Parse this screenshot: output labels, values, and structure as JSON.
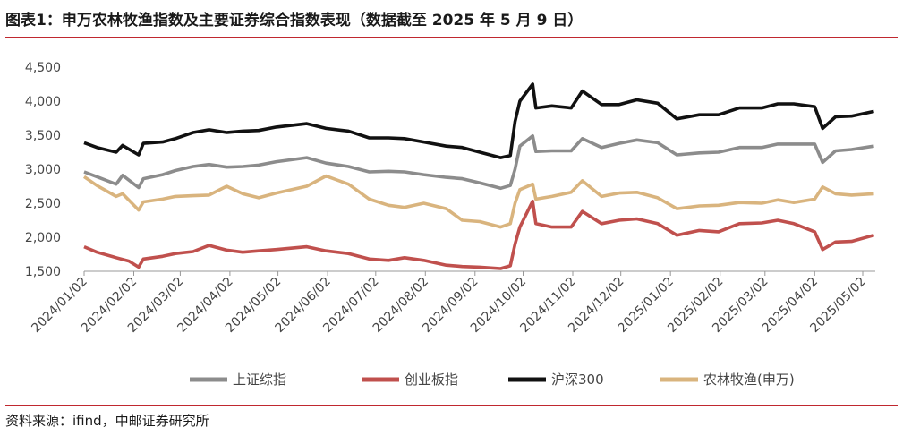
{
  "figure": {
    "title": "图表1：申万农林牧渔指数及主要证券综合指数表现（数据截至 2025 年 5 月 9 日）",
    "source": "资料来源：ifind，中邮证券研究所"
  },
  "chart_data": {
    "type": "line",
    "x_ticks": [
      "2024/01/02",
      "2024/02/02",
      "2024/03/02",
      "2024/04/02",
      "2024/05/02",
      "2024/06/02",
      "2024/07/02",
      "2024/08/02",
      "2024/09/02",
      "2024/10/02",
      "2024/11/02",
      "2024/12/02",
      "2025/01/02",
      "2025/02/02",
      "2025/03/02",
      "2025/04/02",
      "2025/05/02"
    ],
    "x_range": [
      "2024/01/02",
      "2025/05/09"
    ],
    "y_ticks": [
      "1,500",
      "2,000",
      "2,500",
      "3,000",
      "3,500",
      "4,000",
      "4,500"
    ],
    "ylim": [
      1500,
      4500
    ],
    "grid": false,
    "legend_position": "bottom",
    "series": [
      {
        "name": "上证综指",
        "color": "#8c8c8c",
        "points": [
          [
            "2024/01/02",
            2960
          ],
          [
            "2024/01/10",
            2890
          ],
          [
            "2024/01/22",
            2780
          ],
          [
            "2024/01/26",
            2910
          ],
          [
            "2024/02/05",
            2730
          ],
          [
            "2024/02/08",
            2860
          ],
          [
            "2024/02/20",
            2920
          ],
          [
            "2024/02/28",
            2980
          ],
          [
            "2024/03/10",
            3040
          ],
          [
            "2024/03/20",
            3070
          ],
          [
            "2024/03/31",
            3030
          ],
          [
            "2024/04/10",
            3040
          ],
          [
            "2024/04/20",
            3060
          ],
          [
            "2024/05/01",
            3110
          ],
          [
            "2024/05/20",
            3170
          ],
          [
            "2024/06/01",
            3090
          ],
          [
            "2024/06/15",
            3040
          ],
          [
            "2024/06/28",
            2960
          ],
          [
            "2024/07/10",
            2970
          ],
          [
            "2024/07/20",
            2960
          ],
          [
            "2024/08/01",
            2920
          ],
          [
            "2024/08/15",
            2880
          ],
          [
            "2024/08/25",
            2860
          ],
          [
            "2024/09/05",
            2800
          ],
          [
            "2024/09/18",
            2720
          ],
          [
            "2024/09/24",
            2760
          ],
          [
            "2024/09/27",
            3000
          ],
          [
            "2024/09/30",
            3340
          ],
          [
            "2024/10/08",
            3490
          ],
          [
            "2024/10/10",
            3260
          ],
          [
            "2024/10/20",
            3270
          ],
          [
            "2024/11/01",
            3270
          ],
          [
            "2024/11/08",
            3450
          ],
          [
            "2024/11/20",
            3320
          ],
          [
            "2024/12/01",
            3380
          ],
          [
            "2024/12/12",
            3430
          ],
          [
            "2024/12/25",
            3390
          ],
          [
            "2025/01/06",
            3210
          ],
          [
            "2025/01/20",
            3240
          ],
          [
            "2025/02/01",
            3250
          ],
          [
            "2025/02/14",
            3320
          ],
          [
            "2025/02/28",
            3320
          ],
          [
            "2025/03/10",
            3370
          ],
          [
            "2025/03/20",
            3370
          ],
          [
            "2025/04/02",
            3370
          ],
          [
            "2025/04/07",
            3100
          ],
          [
            "2025/04/15",
            3270
          ],
          [
            "2025/04/25",
            3290
          ],
          [
            "2025/05/09",
            3340
          ]
        ]
      },
      {
        "name": "创业板指",
        "color": "#c0504d",
        "points": [
          [
            "2024/01/02",
            1860
          ],
          [
            "2024/01/10",
            1780
          ],
          [
            "2024/01/22",
            1700
          ],
          [
            "2024/01/30",
            1650
          ],
          [
            "2024/02/05",
            1560
          ],
          [
            "2024/02/08",
            1680
          ],
          [
            "2024/02/20",
            1720
          ],
          [
            "2024/02/28",
            1760
          ],
          [
            "2024/03/10",
            1790
          ],
          [
            "2024/03/20",
            1880
          ],
          [
            "2024/03/31",
            1810
          ],
          [
            "2024/04/10",
            1780
          ],
          [
            "2024/04/20",
            1800
          ],
          [
            "2024/05/01",
            1820
          ],
          [
            "2024/05/20",
            1860
          ],
          [
            "2024/06/01",
            1800
          ],
          [
            "2024/06/15",
            1760
          ],
          [
            "2024/06/28",
            1680
          ],
          [
            "2024/07/10",
            1660
          ],
          [
            "2024/07/20",
            1700
          ],
          [
            "2024/08/01",
            1660
          ],
          [
            "2024/08/15",
            1590
          ],
          [
            "2024/08/25",
            1570
          ],
          [
            "2024/09/05",
            1560
          ],
          [
            "2024/09/18",
            1540
          ],
          [
            "2024/09/24",
            1580
          ],
          [
            "2024/09/27",
            1900
          ],
          [
            "2024/09/30",
            2150
          ],
          [
            "2024/10/08",
            2530
          ],
          [
            "2024/10/10",
            2200
          ],
          [
            "2024/10/20",
            2150
          ],
          [
            "2024/11/01",
            2150
          ],
          [
            "2024/11/08",
            2380
          ],
          [
            "2024/11/20",
            2200
          ],
          [
            "2024/12/01",
            2250
          ],
          [
            "2024/12/12",
            2270
          ],
          [
            "2024/12/25",
            2200
          ],
          [
            "2025/01/06",
            2030
          ],
          [
            "2025/01/20",
            2100
          ],
          [
            "2025/02/01",
            2080
          ],
          [
            "2025/02/14",
            2200
          ],
          [
            "2025/02/28",
            2210
          ],
          [
            "2025/03/10",
            2250
          ],
          [
            "2025/03/20",
            2200
          ],
          [
            "2025/04/02",
            2080
          ],
          [
            "2025/04/07",
            1820
          ],
          [
            "2025/04/15",
            1930
          ],
          [
            "2025/04/25",
            1940
          ],
          [
            "2025/05/09",
            2030
          ]
        ]
      },
      {
        "name": "沪深300",
        "color": "#111111",
        "points": [
          [
            "2024/01/02",
            3390
          ],
          [
            "2024/01/10",
            3320
          ],
          [
            "2024/01/22",
            3250
          ],
          [
            "2024/01/26",
            3350
          ],
          [
            "2024/02/05",
            3210
          ],
          [
            "2024/02/08",
            3380
          ],
          [
            "2024/02/20",
            3400
          ],
          [
            "2024/02/28",
            3450
          ],
          [
            "2024/03/10",
            3540
          ],
          [
            "2024/03/20",
            3580
          ],
          [
            "2024/03/31",
            3540
          ],
          [
            "2024/04/10",
            3560
          ],
          [
            "2024/04/20",
            3570
          ],
          [
            "2024/05/01",
            3620
          ],
          [
            "2024/05/20",
            3670
          ],
          [
            "2024/06/01",
            3600
          ],
          [
            "2024/06/15",
            3560
          ],
          [
            "2024/06/28",
            3460
          ],
          [
            "2024/07/10",
            3460
          ],
          [
            "2024/07/20",
            3450
          ],
          [
            "2024/08/01",
            3400
          ],
          [
            "2024/08/15",
            3340
          ],
          [
            "2024/08/25",
            3320
          ],
          [
            "2024/09/05",
            3250
          ],
          [
            "2024/09/18",
            3170
          ],
          [
            "2024/09/24",
            3200
          ],
          [
            "2024/09/27",
            3700
          ],
          [
            "2024/09/30",
            4000
          ],
          [
            "2024/10/08",
            4250
          ],
          [
            "2024/10/10",
            3900
          ],
          [
            "2024/10/20",
            3930
          ],
          [
            "2024/11/01",
            3900
          ],
          [
            "2024/11/08",
            4150
          ],
          [
            "2024/11/20",
            3950
          ],
          [
            "2024/12/01",
            3950
          ],
          [
            "2024/12/12",
            4020
          ],
          [
            "2024/12/25",
            3970
          ],
          [
            "2025/01/06",
            3740
          ],
          [
            "2025/01/20",
            3800
          ],
          [
            "2025/02/01",
            3800
          ],
          [
            "2025/02/14",
            3900
          ],
          [
            "2025/02/28",
            3900
          ],
          [
            "2025/03/10",
            3960
          ],
          [
            "2025/03/20",
            3960
          ],
          [
            "2025/04/02",
            3920
          ],
          [
            "2025/04/07",
            3600
          ],
          [
            "2025/04/15",
            3770
          ],
          [
            "2025/04/25",
            3780
          ],
          [
            "2025/05/09",
            3850
          ]
        ]
      },
      {
        "name": "农林牧渔(申万)",
        "color": "#d9b47e",
        "points": [
          [
            "2024/01/02",
            2890
          ],
          [
            "2024/01/10",
            2760
          ],
          [
            "2024/01/22",
            2600
          ],
          [
            "2024/01/26",
            2640
          ],
          [
            "2024/02/05",
            2400
          ],
          [
            "2024/02/08",
            2520
          ],
          [
            "2024/02/20",
            2560
          ],
          [
            "2024/02/28",
            2600
          ],
          [
            "2024/03/10",
            2610
          ],
          [
            "2024/03/20",
            2620
          ],
          [
            "2024/03/31",
            2750
          ],
          [
            "2024/04/10",
            2640
          ],
          [
            "2024/04/20",
            2580
          ],
          [
            "2024/05/01",
            2650
          ],
          [
            "2024/05/20",
            2750
          ],
          [
            "2024/06/01",
            2900
          ],
          [
            "2024/06/15",
            2780
          ],
          [
            "2024/06/28",
            2560
          ],
          [
            "2024/07/10",
            2470
          ],
          [
            "2024/07/20",
            2440
          ],
          [
            "2024/08/01",
            2500
          ],
          [
            "2024/08/15",
            2420
          ],
          [
            "2024/08/25",
            2250
          ],
          [
            "2024/09/05",
            2230
          ],
          [
            "2024/09/18",
            2150
          ],
          [
            "2024/09/24",
            2200
          ],
          [
            "2024/09/27",
            2500
          ],
          [
            "2024/09/30",
            2700
          ],
          [
            "2024/10/08",
            2780
          ],
          [
            "2024/10/10",
            2560
          ],
          [
            "2024/10/20",
            2600
          ],
          [
            "2024/11/01",
            2660
          ],
          [
            "2024/11/08",
            2830
          ],
          [
            "2024/11/20",
            2600
          ],
          [
            "2024/12/01",
            2650
          ],
          [
            "2024/12/12",
            2660
          ],
          [
            "2024/12/25",
            2580
          ],
          [
            "2025/01/06",
            2420
          ],
          [
            "2025/01/20",
            2460
          ],
          [
            "2025/02/01",
            2470
          ],
          [
            "2025/02/14",
            2510
          ],
          [
            "2025/02/28",
            2500
          ],
          [
            "2025/03/10",
            2550
          ],
          [
            "2025/03/20",
            2510
          ],
          [
            "2025/04/02",
            2560
          ],
          [
            "2025/04/07",
            2740
          ],
          [
            "2025/04/15",
            2640
          ],
          [
            "2025/04/25",
            2620
          ],
          [
            "2025/05/09",
            2640
          ]
        ]
      }
    ]
  }
}
